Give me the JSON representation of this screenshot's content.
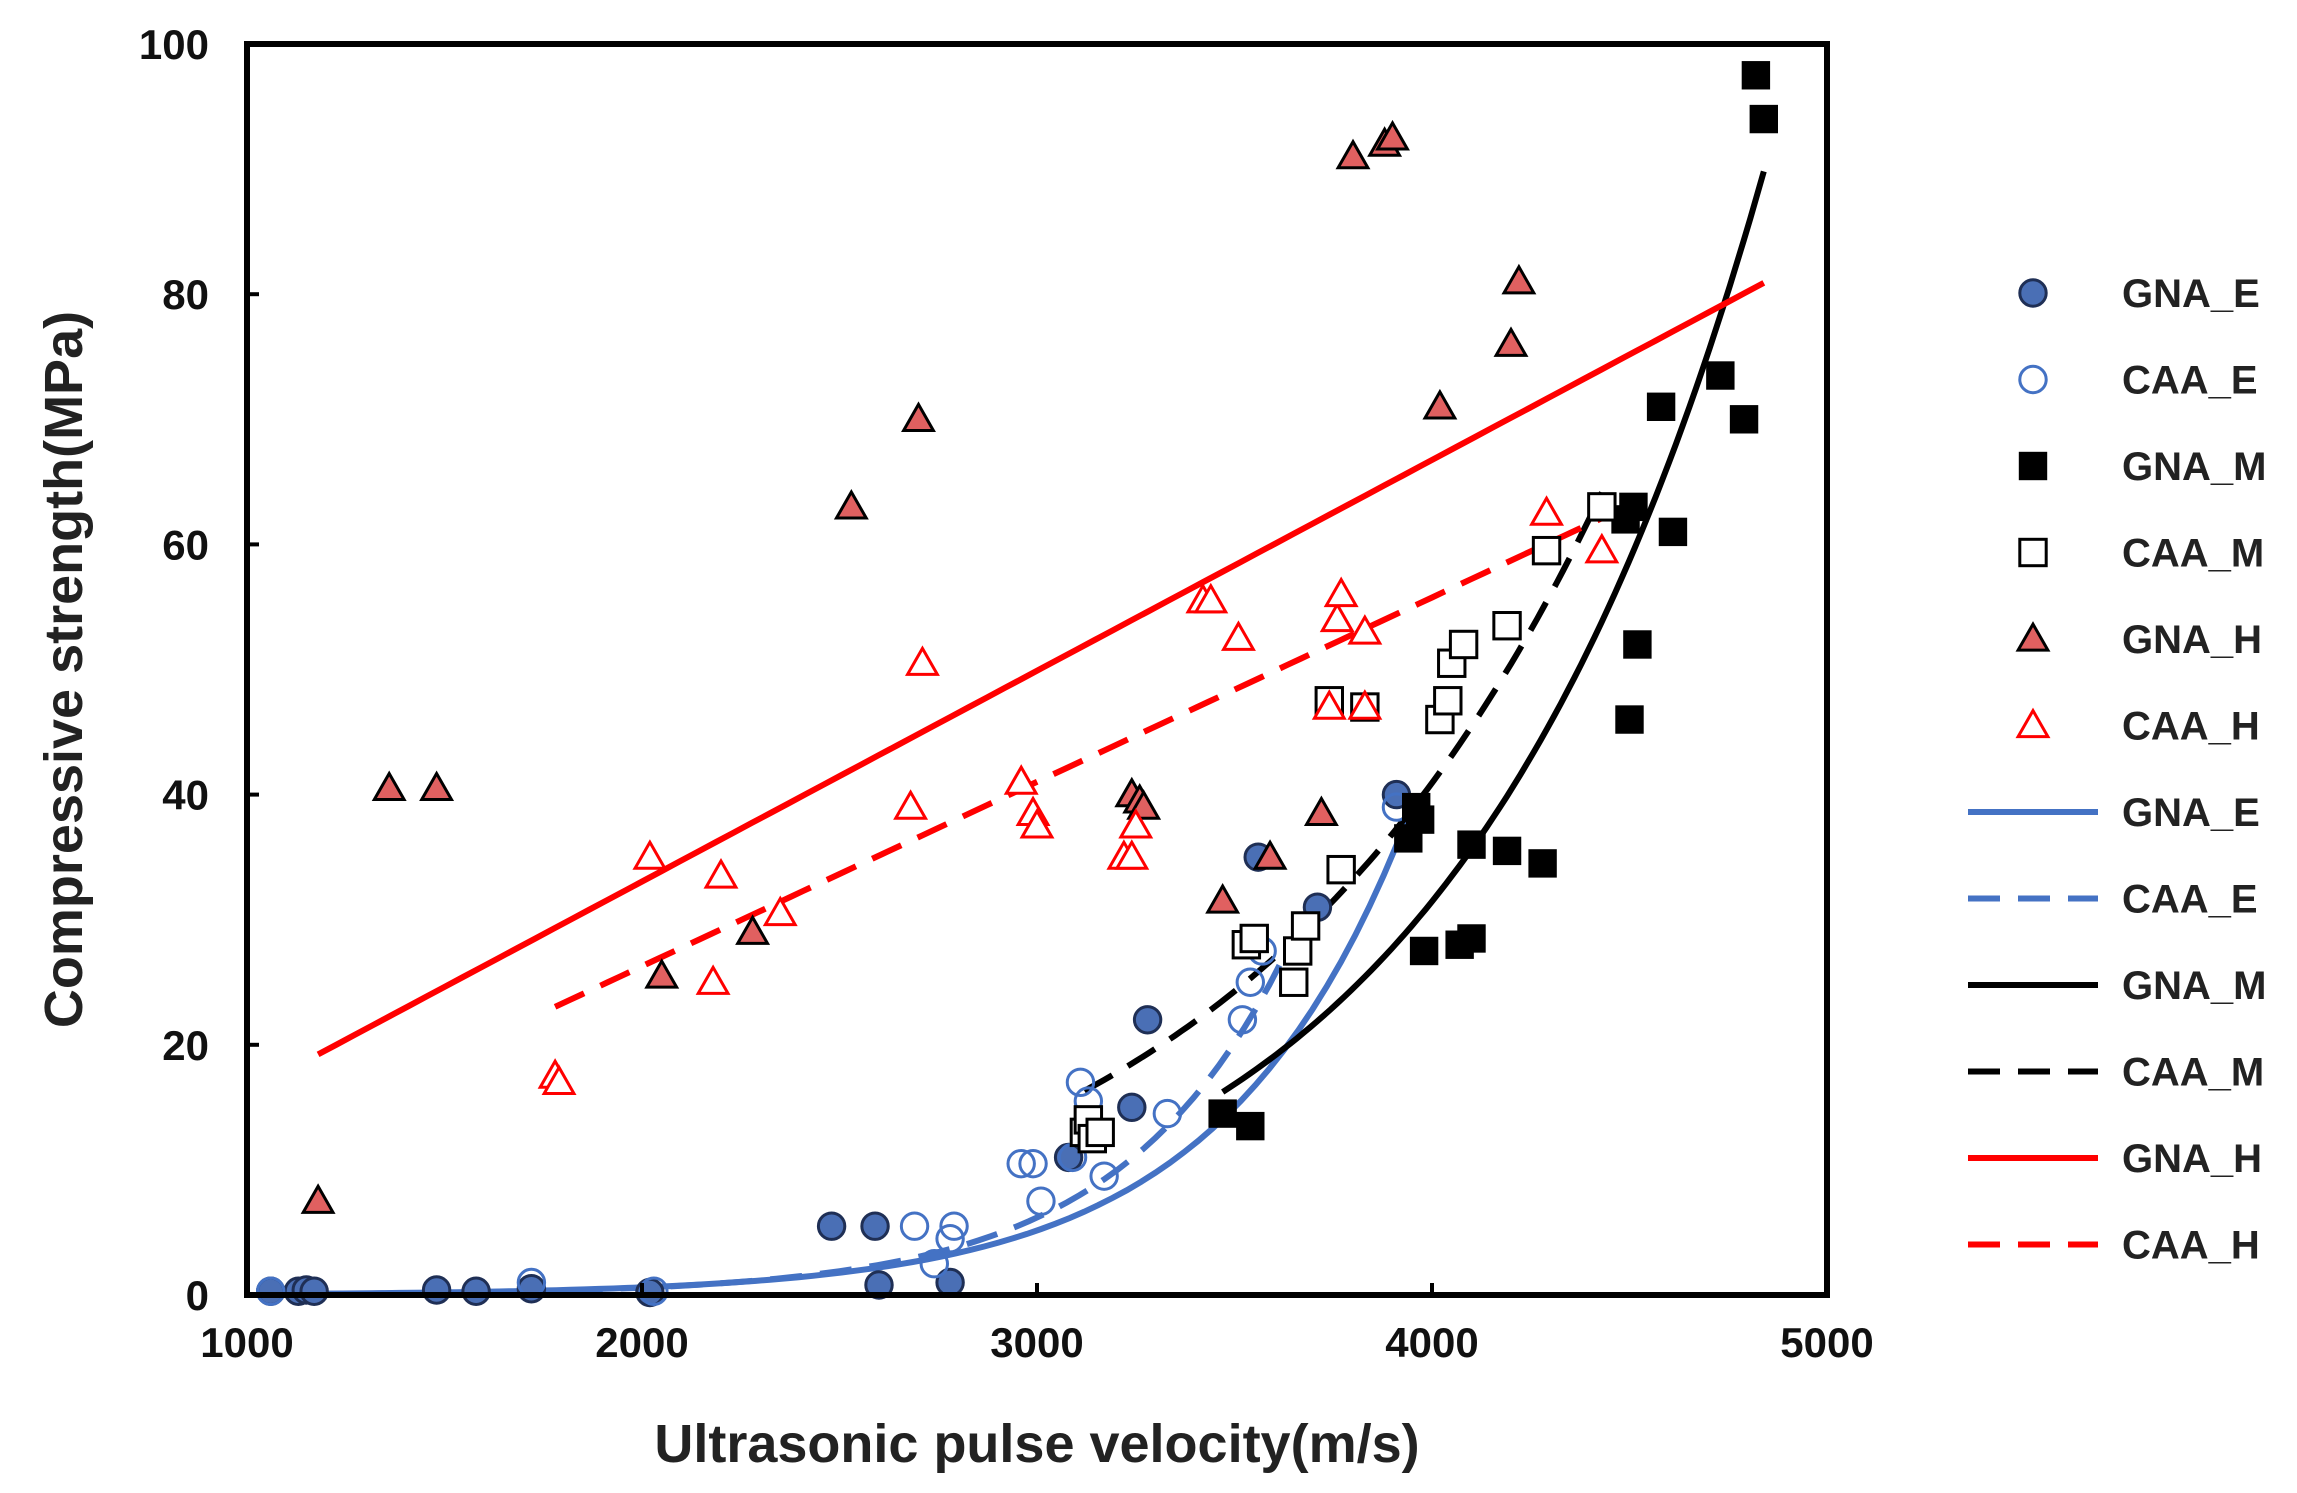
{
  "chart_data": {
    "type": "scatter",
    "title": "",
    "xlabel": "Ultrasonic pulse velocity(m/s)",
    "ylabel": "Compressive strength(MPa)",
    "xlim": [
      1000,
      5000
    ],
    "ylim": [
      0,
      100
    ],
    "xticks": [
      1000,
      2000,
      3000,
      4000,
      5000
    ],
    "yticks": [
      0,
      20,
      40,
      60,
      80,
      100
    ],
    "xtick_labels": [
      "1000",
      "2000",
      "3000",
      "4000",
      "5000"
    ],
    "ytick_labels": [
      "0",
      "20",
      "40",
      "60",
      "80",
      "100"
    ],
    "grid": false,
    "legend_position": "right",
    "colors": {
      "blue": "#4472c4",
      "black": "#000000",
      "red": "#ff0000",
      "triangle_fill": "#e06060"
    },
    "series": [
      {
        "name": "GNA_E",
        "marker": "circle-filled",
        "color": "#4472c4",
        "points": [
          [
            1060,
            0.3
          ],
          [
            1130,
            0.3
          ],
          [
            1150,
            0.4
          ],
          [
            1170,
            0.3
          ],
          [
            1480,
            0.4
          ],
          [
            1580,
            0.3
          ],
          [
            1720,
            0.5
          ],
          [
            2020,
            0.2
          ],
          [
            2480,
            5.5
          ],
          [
            2590,
            5.5
          ],
          [
            2600,
            0.8
          ],
          [
            2780,
            1.0
          ],
          [
            3080,
            11
          ],
          [
            3240,
            15
          ],
          [
            3280,
            22
          ],
          [
            3560,
            35
          ],
          [
            3710,
            31
          ],
          [
            3910,
            40
          ]
        ]
      },
      {
        "name": "CAA_E",
        "marker": "circle-open",
        "color": "#4472c4",
        "points": [
          [
            1060,
            0.3
          ],
          [
            1720,
            1.0
          ],
          [
            2030,
            0.3
          ],
          [
            2690,
            5.5
          ],
          [
            2740,
            2.5
          ],
          [
            2780,
            4.5
          ],
          [
            2790,
            5.5
          ],
          [
            2960,
            10.5
          ],
          [
            2990,
            10.5
          ],
          [
            3010,
            7.5
          ],
          [
            3090,
            11
          ],
          [
            3110,
            17
          ],
          [
            3130,
            15.5
          ],
          [
            3170,
            9.5
          ],
          [
            3330,
            14.5
          ],
          [
            3520,
            22
          ],
          [
            3540,
            25
          ],
          [
            3570,
            27.5
          ],
          [
            3910,
            39
          ]
        ]
      },
      {
        "name": "GNA_M",
        "marker": "square-filled",
        "color": "#000000",
        "points": [
          [
            3470,
            14.5
          ],
          [
            3540,
            13.5
          ],
          [
            3940,
            36.5
          ],
          [
            3960,
            39
          ],
          [
            3970,
            38
          ],
          [
            3980,
            27.5
          ],
          [
            4070,
            28
          ],
          [
            4100,
            28.5
          ],
          [
            4100,
            36
          ],
          [
            4190,
            35.5
          ],
          [
            4280,
            34.5
          ],
          [
            4490,
            62
          ],
          [
            4500,
            46
          ],
          [
            4510,
            63
          ],
          [
            4520,
            52
          ],
          [
            4580,
            71
          ],
          [
            4610,
            61
          ],
          [
            4730,
            73.5
          ],
          [
            4790,
            70
          ],
          [
            4820,
            97.5
          ],
          [
            4840,
            94
          ]
        ]
      },
      {
        "name": "CAA_M",
        "marker": "square-open",
        "color": "#000000",
        "points": [
          [
            3120,
            13
          ],
          [
            3130,
            14
          ],
          [
            3140,
            12.5
          ],
          [
            3160,
            13
          ],
          [
            3530,
            28
          ],
          [
            3550,
            28.5
          ],
          [
            3650,
            25
          ],
          [
            3660,
            27.5
          ],
          [
            3680,
            29.5
          ],
          [
            3740,
            47.5
          ],
          [
            3770,
            34
          ],
          [
            3830,
            47
          ],
          [
            4020,
            46
          ],
          [
            4040,
            47.5
          ],
          [
            4050,
            50.5
          ],
          [
            4080,
            52
          ],
          [
            4190,
            53.5
          ],
          [
            4290,
            59.5
          ],
          [
            4430,
            63
          ]
        ]
      },
      {
        "name": "GNA_H",
        "marker": "triangle-filled",
        "color": "#000000",
        "fill": "#e06060",
        "points": [
          [
            1180,
            7.5
          ],
          [
            1360,
            40.5
          ],
          [
            1480,
            40.5
          ],
          [
            2050,
            25.5
          ],
          [
            2280,
            29
          ],
          [
            2530,
            63
          ],
          [
            2700,
            70
          ],
          [
            3240,
            40
          ],
          [
            3260,
            39.5
          ],
          [
            3270,
            39
          ],
          [
            3470,
            31.5
          ],
          [
            3590,
            35
          ],
          [
            3720,
            38.5
          ],
          [
            3800,
            91
          ],
          [
            3880,
            92
          ],
          [
            3900,
            92.5
          ],
          [
            4020,
            71
          ],
          [
            4200,
            76
          ],
          [
            4220,
            81
          ]
        ]
      },
      {
        "name": "CAA_H",
        "marker": "triangle-open",
        "color": "#ff0000",
        "points": [
          [
            1780,
            17.5
          ],
          [
            1790,
            17
          ],
          [
            2020,
            35
          ],
          [
            2180,
            25
          ],
          [
            2200,
            33.5
          ],
          [
            2350,
            30.5
          ],
          [
            2680,
            39
          ],
          [
            2710,
            50.5
          ],
          [
            2960,
            41
          ],
          [
            2990,
            38.5
          ],
          [
            3000,
            37.5
          ],
          [
            3220,
            35
          ],
          [
            3240,
            35
          ],
          [
            3250,
            37.5
          ],
          [
            3420,
            55.5
          ],
          [
            3440,
            55.5
          ],
          [
            3510,
            52.5
          ],
          [
            3740,
            47
          ],
          [
            3760,
            54
          ],
          [
            3770,
            56
          ],
          [
            3830,
            47
          ],
          [
            3830,
            53
          ],
          [
            4290,
            62.5
          ],
          [
            4430,
            59.5
          ]
        ]
      }
    ],
    "trendlines": [
      {
        "name": "GNA_E",
        "style": "solid",
        "color": "#4472c4",
        "model": "exponential",
        "a": 0.00858,
        "b": 0.002133,
        "x_range": [
          1060,
          3950
        ]
      },
      {
        "name": "CAA_E",
        "style": "dashed",
        "color": "#4472c4",
        "model": "exponential",
        "a": 0.00521,
        "b": 0.00236,
        "x_range": [
          1060,
          3620
        ]
      },
      {
        "name": "GNA_M",
        "style": "solid",
        "color": "#000000",
        "model": "exponential",
        "a": 0.2128,
        "b": 0.001249,
        "x_range": [
          3470,
          4840
        ]
      },
      {
        "name": "CAA_M",
        "style": "dashed",
        "color": "#000000",
        "model": "exponential",
        "a": 0.6262,
        "b": 0.001045,
        "x_range": [
          3120,
          4430
        ]
      },
      {
        "name": "GNA_H",
        "style": "solid",
        "color": "#ff0000",
        "model": "linear",
        "slope": 0.01685,
        "intercept": -0.65,
        "x_range": [
          1180,
          4840
        ]
      },
      {
        "name": "CAA_H",
        "style": "dashed",
        "color": "#ff0000",
        "model": "linear",
        "slope": 0.01474,
        "intercept": -3.2,
        "x_range": [
          1780,
          4430
        ]
      }
    ],
    "legend": {
      "markers": [
        "GNA_E",
        "CAA_E",
        "GNA_M",
        "CAA_M",
        "GNA_H",
        "CAA_H"
      ],
      "lines": [
        "GNA_E",
        "CAA_E",
        "GNA_M",
        "CAA_M",
        "GNA_H",
        "CAA_H"
      ]
    }
  }
}
